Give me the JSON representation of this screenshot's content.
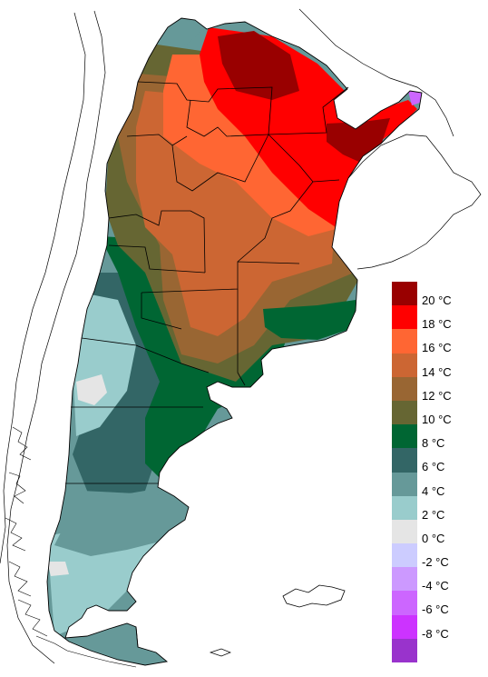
{
  "legend": {
    "unit_suffix": "°C",
    "items": [
      {
        "label": "20 °C",
        "color": "#990000"
      },
      {
        "label": "18 °C",
        "color": "#ff0000"
      },
      {
        "label": "16 °C",
        "color": "#ff6633"
      },
      {
        "label": "14 °C",
        "color": "#cc6633"
      },
      {
        "label": "12 °C",
        "color": "#996633"
      },
      {
        "label": "10 °C",
        "color": "#666633"
      },
      {
        "label": "8 °C",
        "color": "#006633"
      },
      {
        "label": "6 °C",
        "color": "#336666"
      },
      {
        "label": "4 °C",
        "color": "#669999"
      },
      {
        "label": "2 °C",
        "color": "#99cccc"
      },
      {
        "label": "0 °C",
        "color": "#e5e5e5"
      },
      {
        "label": "-2 °C",
        "color": "#ccccff"
      },
      {
        "label": "-4 °C",
        "color": "#cc99ff"
      },
      {
        "label": "-6 °C",
        "color": "#cc66ff"
      },
      {
        "label": "-8 °C",
        "color": "#cc33ff"
      },
      {
        "label": "",
        "color": "#9933cc"
      }
    ]
  }
}
